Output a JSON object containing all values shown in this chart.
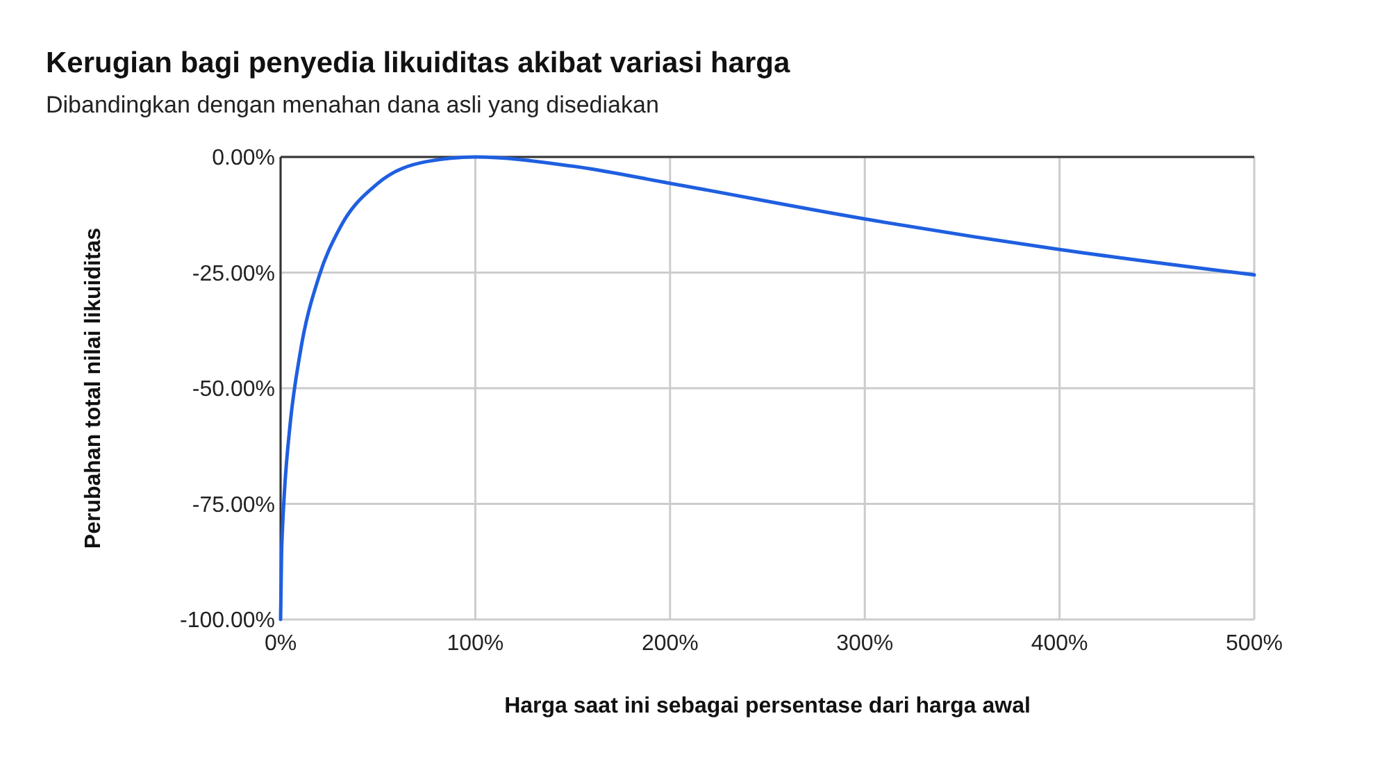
{
  "chart_data": {
    "type": "line",
    "title": "Kerugian bagi penyedia likuiditas akibat variasi harga",
    "subtitle": "Dibandingkan dengan menahan dana asli yang disediakan",
    "xlabel": "Harga saat ini sebagai persentase dari harga awal",
    "ylabel": "Perubahan total nilai likuiditas",
    "x": [
      0,
      0.5,
      1,
      2,
      5,
      10,
      20,
      30,
      50,
      75,
      100,
      150,
      200,
      300,
      400,
      500
    ],
    "series": [
      {
        "color": "#1f5fe0",
        "values": [
          -100,
          -85.9,
          -80.2,
          -72.3,
          -57.4,
          -42.5,
          -25.5,
          -15.7,
          -5.7,
          -1.0,
          0,
          -2.0,
          -5.7,
          -13.4,
          -20.0,
          -25.5
        ]
      }
    ],
    "xlim": [
      0,
      500
    ],
    "xticks": [
      {
        "value": 0,
        "label": "0%"
      },
      {
        "value": 100,
        "label": "100%"
      },
      {
        "value": 200,
        "label": "200%"
      },
      {
        "value": 300,
        "label": "300%"
      },
      {
        "value": 400,
        "label": "400%"
      },
      {
        "value": 500,
        "label": "500%"
      }
    ],
    "ylim": [
      -100,
      0
    ],
    "yticks": [
      {
        "value": 0,
        "label": "0.00%"
      },
      {
        "value": -25,
        "label": "-25.00%"
      },
      {
        "value": -50,
        "label": "-50.00%"
      },
      {
        "value": -75,
        "label": "-75.00%"
      },
      {
        "value": -100,
        "label": "-100.00%"
      }
    ],
    "grid": true,
    "marker": "none",
    "line_style": "solid"
  }
}
